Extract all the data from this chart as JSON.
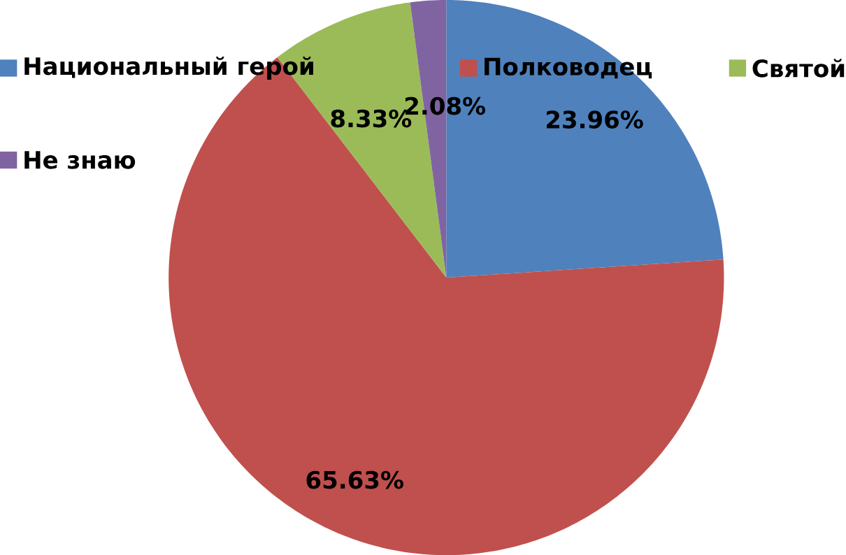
{
  "chart_data": {
    "type": "pie",
    "categories": [
      "Национальный герой",
      "Полководец",
      "Святой",
      "Не знаю"
    ],
    "values": [
      23.96,
      65.63,
      8.33,
      2.08
    ],
    "value_labels": [
      "23.96%",
      "65.63%",
      "8.33%",
      "2.08%"
    ],
    "colors": [
      "#4f81bd",
      "#c0504d",
      "#9bbb59",
      "#8064a2"
    ],
    "legend": "top"
  }
}
